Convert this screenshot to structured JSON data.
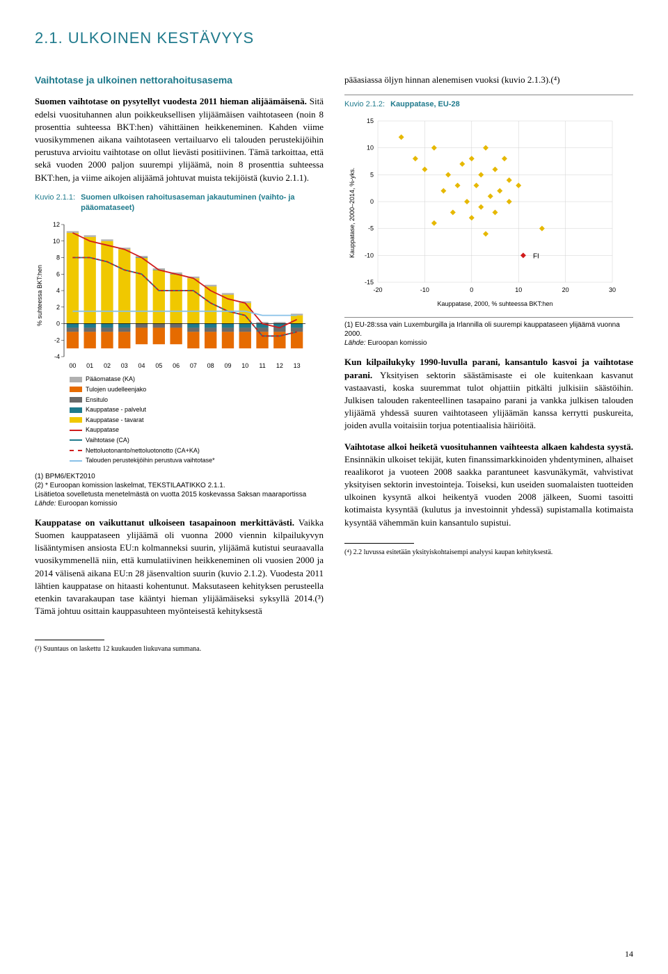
{
  "section_title": "2.1. ULKOINEN KESTÄVYYS",
  "col1": {
    "subtitle": "Vaihtotase ja ulkoinen nettorahoitusasema",
    "p1_bold": "Suomen vaihtotase on pysytellyt vuodesta 2011 hieman alijäämäisenä.",
    "p1_rest": " Sitä edelsi vuosituhannen alun poikkeuksellisen ylijäämäisen vaihtotaseen (noin 8 prosenttia suhteessa BKT:hen) vähittäinen heikkeneminen. Kahden viime vuosikymmenen aikana vaihtotaseen vertailuarvo eli talouden perustekijöihin perustuva arvioitu vaihtotase on ollut lievästi positiivinen. Tämä tarkoittaa, että sekä vuoden 2000 paljon suurempi ylijäämä, noin 8 prosenttia suhteessa BKT:hen, ja viime aikojen alijäämä johtuvat muista tekijöistä (kuvio 2.1.1).",
    "fig1_num": "Kuvio 2.1.1:",
    "fig1_title": "Suomen ulkoisen rahoitusaseman jakautuminen (vaihto- ja pääomataseet)",
    "fig1": {
      "type": "stacked-bar-with-lines",
      "ylabel": "% suhteessa BKT:hen",
      "ylim": [
        -4,
        12
      ],
      "ytick_step": 2,
      "years": [
        "00",
        "01",
        "02",
        "03",
        "04",
        "05",
        "06",
        "07",
        "08",
        "09",
        "10",
        "11",
        "12",
        "13"
      ],
      "legend": [
        {
          "label": "Pääomatase (KA)",
          "color": "#b0b0b0",
          "type": "bar"
        },
        {
          "label": "Tulojen uudelleenjako",
          "color": "#e66b00",
          "type": "bar"
        },
        {
          "label": "Ensitulo",
          "color": "#6a6a6a",
          "type": "bar"
        },
        {
          "label": "Kauppatase - palvelut",
          "color": "#1f7a8c",
          "type": "bar"
        },
        {
          "label": "Kauppatase - tavarat",
          "color": "#f0c800",
          "type": "bar"
        },
        {
          "label": "Kauppatase",
          "color": "#d01c1c",
          "type": "line"
        },
        {
          "label": "Vaihtotase (CA)",
          "color": "#1f7a8c",
          "type": "line"
        },
        {
          "label": "Nettoluotonanto/nettoluotonotto (CA+KA)",
          "color": "#d01c1c",
          "type": "dashed"
        },
        {
          "label": "Talouden perustekijöihin perustuva vaihtotase*",
          "color": "#88c1e8",
          "type": "line"
        }
      ],
      "bars": {
        "tavarat": [
          11,
          10.5,
          10,
          9,
          8,
          6.5,
          6,
          5.5,
          4.5,
          3.5,
          2.5,
          0,
          0,
          1
        ],
        "palvelut": [
          -0.5,
          -0.5,
          -0.5,
          -0.5,
          0,
          0,
          0,
          -0.5,
          -0.5,
          -0.5,
          -0.5,
          -0.5,
          -0.5,
          -0.5
        ],
        "ensitulo": [
          -0.5,
          -0.5,
          -0.5,
          -0.5,
          -0.5,
          -0.5,
          -0.5,
          -0.5,
          -0.5,
          -0.5,
          -0.5,
          -0.5,
          -0.5,
          -0.5
        ],
        "uudelleen": [
          -2,
          -2,
          -2,
          -2,
          -2,
          -2,
          -2,
          -2,
          -2,
          -2,
          -2,
          -2,
          -2,
          -2
        ],
        "paaoma": [
          0.2,
          0.2,
          0.2,
          0.2,
          0.2,
          0.2,
          0.2,
          0.2,
          0.2,
          0.2,
          0.2,
          0.2,
          0.2,
          0.2
        ]
      },
      "line_ca": [
        8,
        8,
        7.5,
        6.5,
        6,
        4,
        4,
        4,
        2.5,
        1.5,
        1,
        -1.5,
        -1.5,
        -1
      ],
      "line_kauppa": [
        11,
        10,
        9.5,
        9,
        8,
        6.5,
        6,
        5.5,
        4,
        3,
        2.5,
        0,
        -0.5,
        0.5
      ],
      "line_perus": [
        1.5,
        1.5,
        1.5,
        1.5,
        1.5,
        1.5,
        1.5,
        1.5,
        1.5,
        1.5,
        1.5,
        1,
        1,
        1
      ]
    },
    "fig1_note": "(1) BPM6/EKT2010\n(2) * Euroopan komission laskelmat, TEKSTILAATIKKO 2.1.1.\nLisätietoa sovelletusta menetelmästä on vuotta 2015 koskevassa Saksan maaraportissa\nLähde: Euroopan komissio",
    "p2_bold": "Kauppatase on vaikuttanut ulkoiseen tasapainoon merkittävästi.",
    "p2_rest": " Vaikka Suomen kauppataseen ylijäämä oli vuonna 2000 viennin kilpailukyvyn lisääntymisen ansiosta EU:n kolmanneksi suurin, ylijäämä kutistui seuraavalla vuosikymmenellä niin, että kumulatiivinen heikkeneminen oli vuosien 2000 ja 2014 välisenä aikana EU:n 28 jäsenvaltion suurin (kuvio 2.1.2). Vuodesta 2011 lähtien kauppatase on hitaasti kohentunut. Maksutaseen kehityksen perusteella etenkin tavarakaupan tase kääntyi hieman ylijäämäiseksi syksyllä 2014.(³) Tämä johtuu osittain kauppasuhteen myönteisestä kehityksestä"
  },
  "col2": {
    "p1": "pääasiassa öljyn hinnan alenemisen vuoksi (kuvio 2.1.3).(⁴)",
    "fig2_num": "Kuvio 2.1.2:",
    "fig2_title": "Kauppatase, EU-28",
    "fig2": {
      "type": "scatter",
      "xlabel": "Kauppatase, 2000, % suhteessa BKT:hen",
      "ylabel": "Kauppatase, 2000–2014, %-yks.",
      "xlim": [
        -20,
        30
      ],
      "ylim": [
        -15,
        15
      ],
      "xtick_step": 10,
      "ytick_step": 5,
      "grid_color": "#d0d0d0",
      "point_color": "#e6b800",
      "fi_color": "#d01c1c",
      "fi_label": "FI",
      "fi_point": [
        11,
        -10
      ],
      "points": [
        [
          -15,
          12
        ],
        [
          -12,
          8
        ],
        [
          -10,
          6
        ],
        [
          -8,
          10
        ],
        [
          -5,
          5
        ],
        [
          -3,
          3
        ],
        [
          -2,
          7
        ],
        [
          -6,
          2
        ],
        [
          0,
          8
        ],
        [
          2,
          5
        ],
        [
          1,
          3
        ],
        [
          3,
          10
        ],
        [
          4,
          1
        ],
        [
          5,
          6
        ],
        [
          6,
          2
        ],
        [
          7,
          8
        ],
        [
          8,
          0
        ],
        [
          -4,
          -2
        ],
        [
          -1,
          0
        ],
        [
          0,
          -3
        ],
        [
          2,
          -1
        ],
        [
          5,
          -2
        ],
        [
          3,
          -6
        ],
        [
          8,
          4
        ],
        [
          10,
          3
        ],
        [
          -8,
          -4
        ],
        [
          15,
          -5
        ]
      ]
    },
    "fig2_note": "(1) EU-28:ssa vain Luxemburgilla ja Irlannilla oli suurempi kauppataseen ylijäämä vuonna 2000.\nLähde: Euroopan komissio",
    "p2_bold": "Kun kilpailukyky 1990-luvulla parani, kansantulo kasvoi ja vaihtotase parani.",
    "p2_rest": " Yksityisen sektorin säästämisaste ei ole kuitenkaan kasvanut vastaavasti, koska suuremmat tulot ohjattiin pitkälti julkisiin säästöihin. Julkisen talouden rakenteellinen tasapaino parani ja vankka julkisen talouden ylijäämä yhdessä suuren vaihtotaseen ylijäämän kanssa kerrytti puskureita, joiden avulla voitaisiin torjua potentiaalisia häiriöitä.",
    "p3_bold": "Vaihtotase alkoi heiketä vuosituhannen vaihteesta alkaen kahdesta syystä.",
    "p3_rest": " Ensinnäkin ulkoiset tekijät, kuten finanssimarkkinoiden yhdentyminen, alhaiset reaalikorot ja vuoteen 2008 saakka parantuneet kasvunäkymät, vahvistivat yksityisen sektorin investointeja. Toiseksi, kun useiden suomalaisten tuotteiden ulkoinen kysyntä alkoi heikentyä vuoden 2008 jälkeen, Suomi tasoitti kotimaista kysyntää (kulutus ja investoinnit yhdessä) supistamalla kotimaista kysyntää vähemmän kuin kansantulo supistui.",
    "footnote4": "(⁴) 2.2 luvussa esitetään yksityiskohtaisempi analyysi kaupan kehityksestä."
  },
  "footnote3": "(³) Suuntaus on laskettu 12 kuukauden liukuvana summana.",
  "page_number": "14"
}
